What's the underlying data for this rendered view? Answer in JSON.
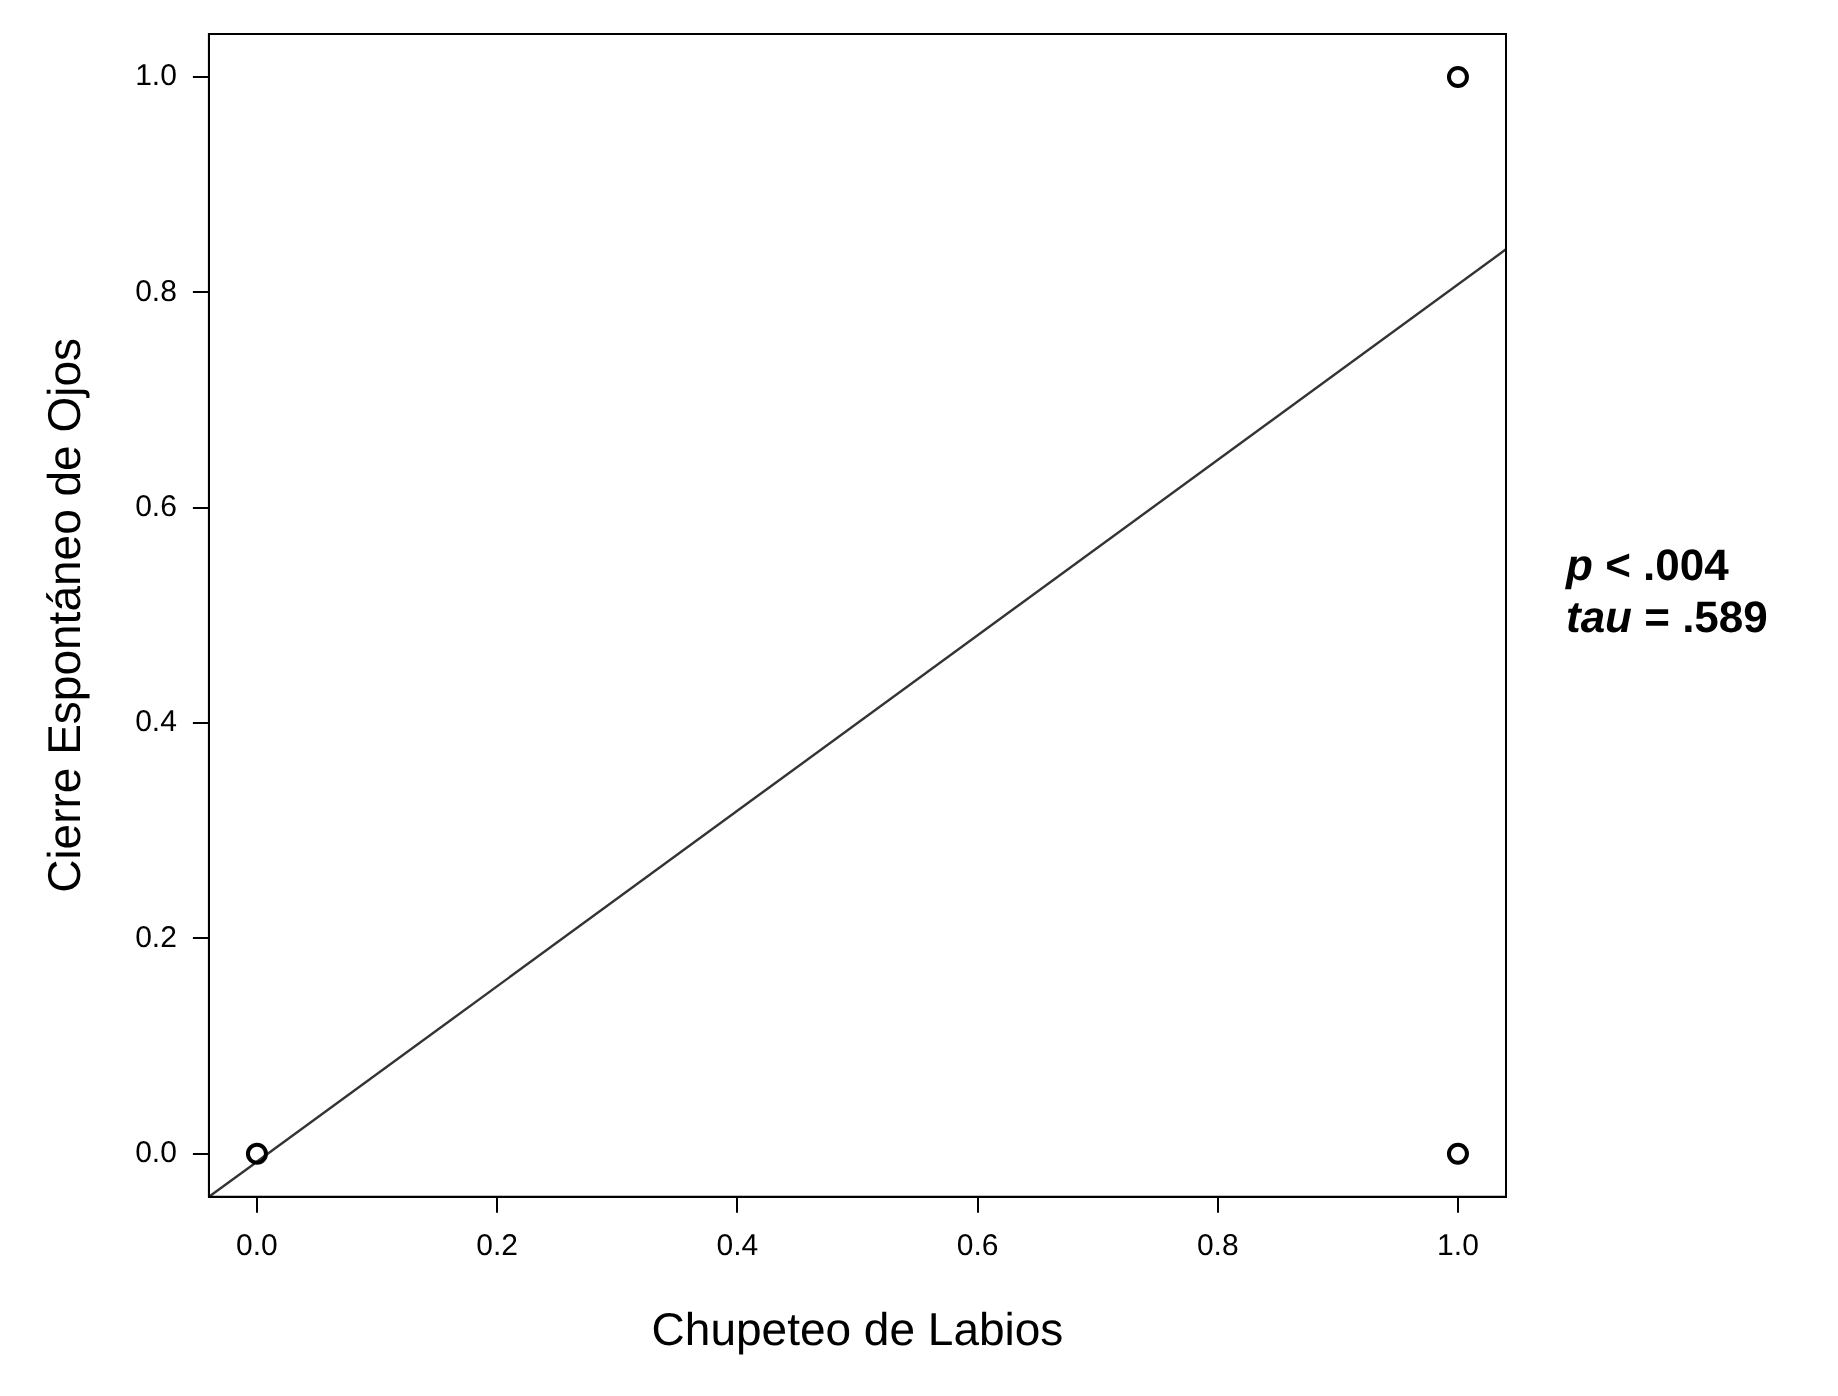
{
  "chart_data": {
    "type": "scatter",
    "xlabel": "Chupeteo de Labios",
    "ylabel": "Cierre Espontáneo de Ojos",
    "xlim": [
      -0.04,
      1.04
    ],
    "ylim": [
      -0.04,
      1.04
    ],
    "xticks": [
      {
        "value": 0,
        "label": "0.0"
      },
      {
        "value": 0.2,
        "label": "0.2"
      },
      {
        "value": 0.4,
        "label": "0.4"
      },
      {
        "value": 0.6,
        "label": "0.6"
      },
      {
        "value": 0.8,
        "label": "0.8"
      },
      {
        "value": 1,
        "label": "1.0"
      }
    ],
    "yticks": [
      {
        "value": 0,
        "label": "0.0"
      },
      {
        "value": 0.2,
        "label": "0.2"
      },
      {
        "value": 0.4,
        "label": "0.4"
      },
      {
        "value": 0.6,
        "label": "0.6"
      },
      {
        "value": 0.8,
        "label": "0.8"
      },
      {
        "value": 1,
        "label": "1.0"
      }
    ],
    "grid": false,
    "legend": false,
    "series": [
      {
        "marker": "circle",
        "color": "#000000",
        "x": [
          0,
          1,
          1
        ],
        "values": [
          0,
          1,
          0
        ]
      },
      {
        "type": "line",
        "marker": "none",
        "color": "#333333",
        "x": [
          -0.04,
          1.04
        ],
        "values": [
          -0.04,
          0.84
        ]
      }
    ],
    "annotations": [
      "p < .004",
      "tau = .589"
    ]
  }
}
